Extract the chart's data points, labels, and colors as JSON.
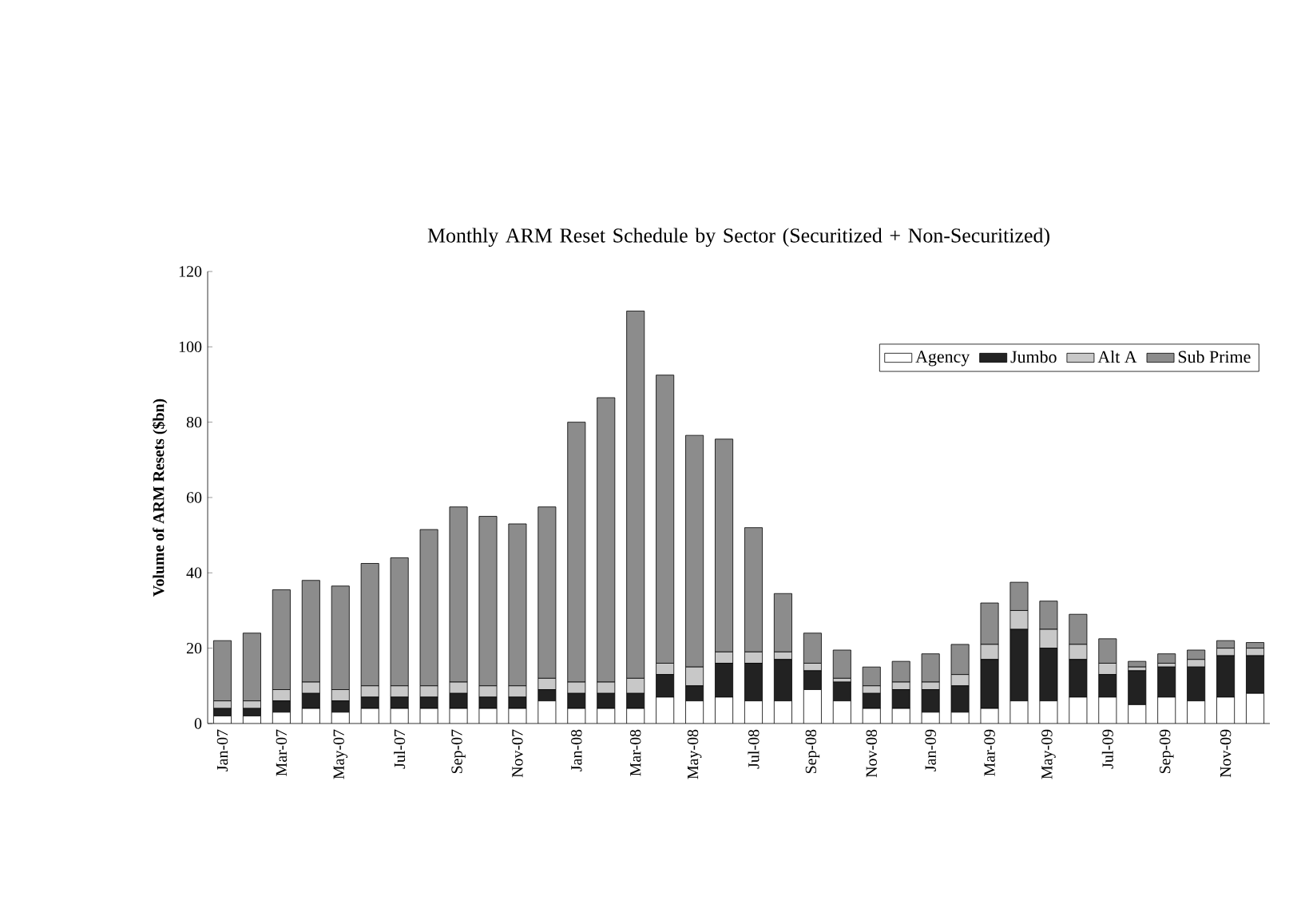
{
  "chart_data": {
    "type": "bar",
    "stacked": true,
    "title": "Monthly ARM Reset Schedule by Sector (Securitized + Non-Securitized)",
    "ylabel": "Volume of ARM Resets ($bn)",
    "categories": [
      "Jan-07",
      null,
      "Mar-07",
      null,
      "May-07",
      null,
      "Jul-07",
      null,
      "Sep-07",
      null,
      "Nov-07",
      null,
      "Jan-08",
      null,
      "Mar-08",
      null,
      "May-08",
      null,
      "Jul-08",
      null,
      "Sep-08",
      null,
      "Nov-08",
      null,
      "Jan-09",
      null,
      "Mar-09",
      null,
      "May-09",
      null,
      "Jul-09",
      null,
      "Sep-09",
      null,
      "Nov-09",
      null
    ],
    "series": [
      {
        "name": "Agency",
        "color": "#ffffff",
        "values": [
          2,
          2,
          3,
          4,
          3,
          4,
          4,
          4,
          4,
          4,
          4,
          6,
          4,
          4,
          4,
          7,
          6,
          7,
          6,
          6,
          9,
          6,
          4,
          4,
          3,
          3,
          4,
          6,
          6,
          7,
          7,
          5,
          7,
          6,
          7,
          8
        ]
      },
      {
        "name": "Jumbo",
        "color": "#222222",
        "values": [
          2,
          2,
          3,
          4,
          3,
          3,
          3,
          3,
          4,
          3,
          3,
          3,
          4,
          4,
          4,
          6,
          4,
          9,
          10,
          11,
          5,
          5,
          4,
          5,
          6,
          7,
          13,
          19,
          14,
          10,
          6,
          9,
          8,
          9,
          11,
          10
        ]
      },
      {
        "name": "Alt A",
        "color": "#c8c8c8",
        "values": [
          2,
          2,
          3,
          3,
          3,
          3,
          3,
          3,
          3,
          3,
          3,
          3,
          3,
          3,
          4,
          3,
          5,
          3,
          3,
          2,
          2,
          1,
          2,
          2,
          2,
          3,
          4,
          5,
          5,
          4,
          3,
          1,
          1,
          2,
          2,
          2
        ]
      },
      {
        "name": "Sub Prime",
        "color": "#8c8c8c",
        "values": [
          16,
          18,
          26.5,
          27,
          27.5,
          32.5,
          34,
          41.5,
          46.5,
          45,
          43,
          45.5,
          69,
          75.5,
          97.5,
          76.5,
          61.5,
          56.5,
          33,
          15.5,
          8,
          7.5,
          5,
          5.5,
          7.5,
          8,
          11,
          7.5,
          7.5,
          8,
          6.5,
          1.5,
          2.5,
          2.5,
          2,
          1.5
        ]
      }
    ],
    "ylim": [
      0,
      120
    ],
    "yticks": [
      0,
      20,
      40,
      60,
      80,
      100,
      120
    ],
    "legend": "top right"
  }
}
